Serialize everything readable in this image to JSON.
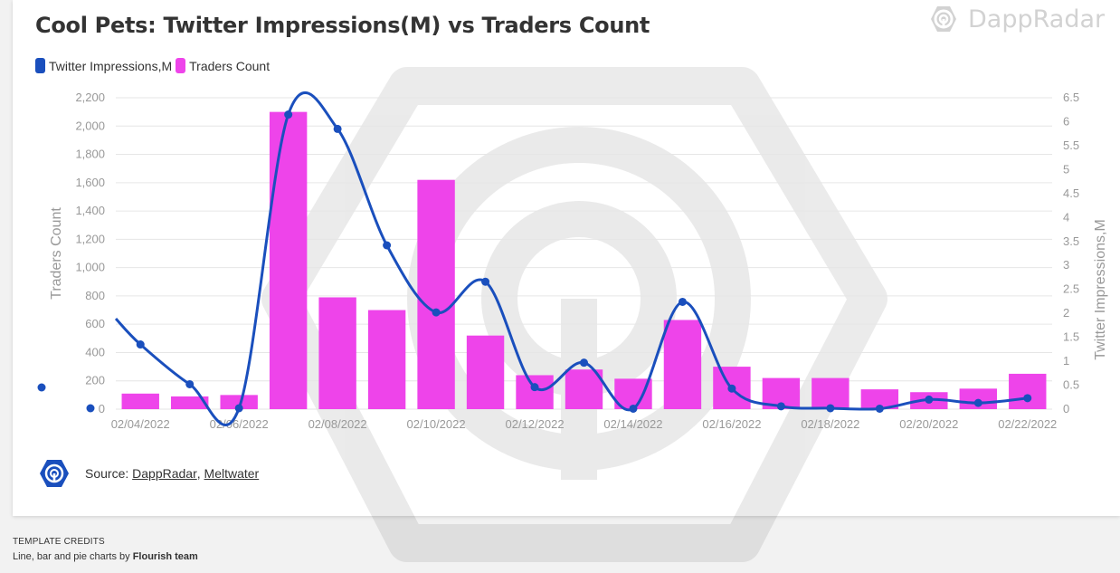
{
  "title": "Cool Pets: Twitter Impressions(M) vs Traders Count",
  "brand": {
    "name": "DappRadar",
    "icon": "dappradar-logo-icon"
  },
  "colors": {
    "line": "#1a4fbd",
    "bar": "#ee44ea",
    "grid": "#e6e6e6",
    "axis_text": "#999999"
  },
  "source": {
    "prefix": "Source:",
    "link1": "DappRadar",
    "separator": ",",
    "link2": "Meltwater"
  },
  "credits": {
    "title": "TEMPLATE CREDITS",
    "text": "Line, bar and pie charts by",
    "team": "Flourish team"
  },
  "chart_data": {
    "type": "bar",
    "categories": [
      "02/04/2022",
      "02/05/2022",
      "02/06/2022",
      "02/07/2022",
      "02/08/2022",
      "02/09/2022",
      "02/10/2022",
      "02/11/2022",
      "02/12/2022",
      "02/13/2022",
      "02/14/2022",
      "02/15/2022",
      "02/16/2022",
      "02/17/2022",
      "02/18/2022",
      "02/19/2022",
      "02/20/2022",
      "02/21/2022",
      "02/22/2022"
    ],
    "x_tick_labels": [
      "02/04/2022",
      "02/06/2022",
      "02/08/2022",
      "02/10/2022",
      "02/12/2022",
      "02/14/2022",
      "02/16/2022",
      "02/18/2022",
      "02/20/2022",
      "02/22/2022"
    ],
    "series": [
      {
        "name": "Twitter Impressions,M",
        "type": "line",
        "axis": "right",
        "values": [
          1.35,
          0.52,
          0.02,
          6.15,
          5.85,
          3.42,
          2.02,
          2.66,
          0.46,
          0.97,
          0.01,
          2.24,
          0.43,
          0.06,
          0.02,
          0.01,
          0.2,
          0.13,
          0.23
        ]
      },
      {
        "name": "Traders Count",
        "type": "bar",
        "axis": "left",
        "values": [
          110,
          90,
          100,
          2100,
          790,
          700,
          1620,
          520,
          240,
          280,
          215,
          630,
          300,
          220,
          220,
          140,
          120,
          145,
          250
        ]
      }
    ],
    "yleft": {
      "label": "Traders Count",
      "lim": [
        0,
        2200
      ],
      "ticks": [
        "0",
        "200",
        "400",
        "600",
        "800",
        "1,000",
        "1,200",
        "1,400",
        "1,600",
        "1,800",
        "2,000",
        "2,200"
      ]
    },
    "yright": {
      "label": "Twitter Impressions,M",
      "lim": [
        0,
        6.5
      ],
      "ticks": [
        "0",
        "0.5",
        "1",
        "1.5",
        "2",
        "2.5",
        "3",
        "3.5",
        "4",
        "4.5",
        "5",
        "5.5",
        "6",
        "6.5"
      ]
    },
    "grid": true,
    "legend_position": "top-left"
  }
}
